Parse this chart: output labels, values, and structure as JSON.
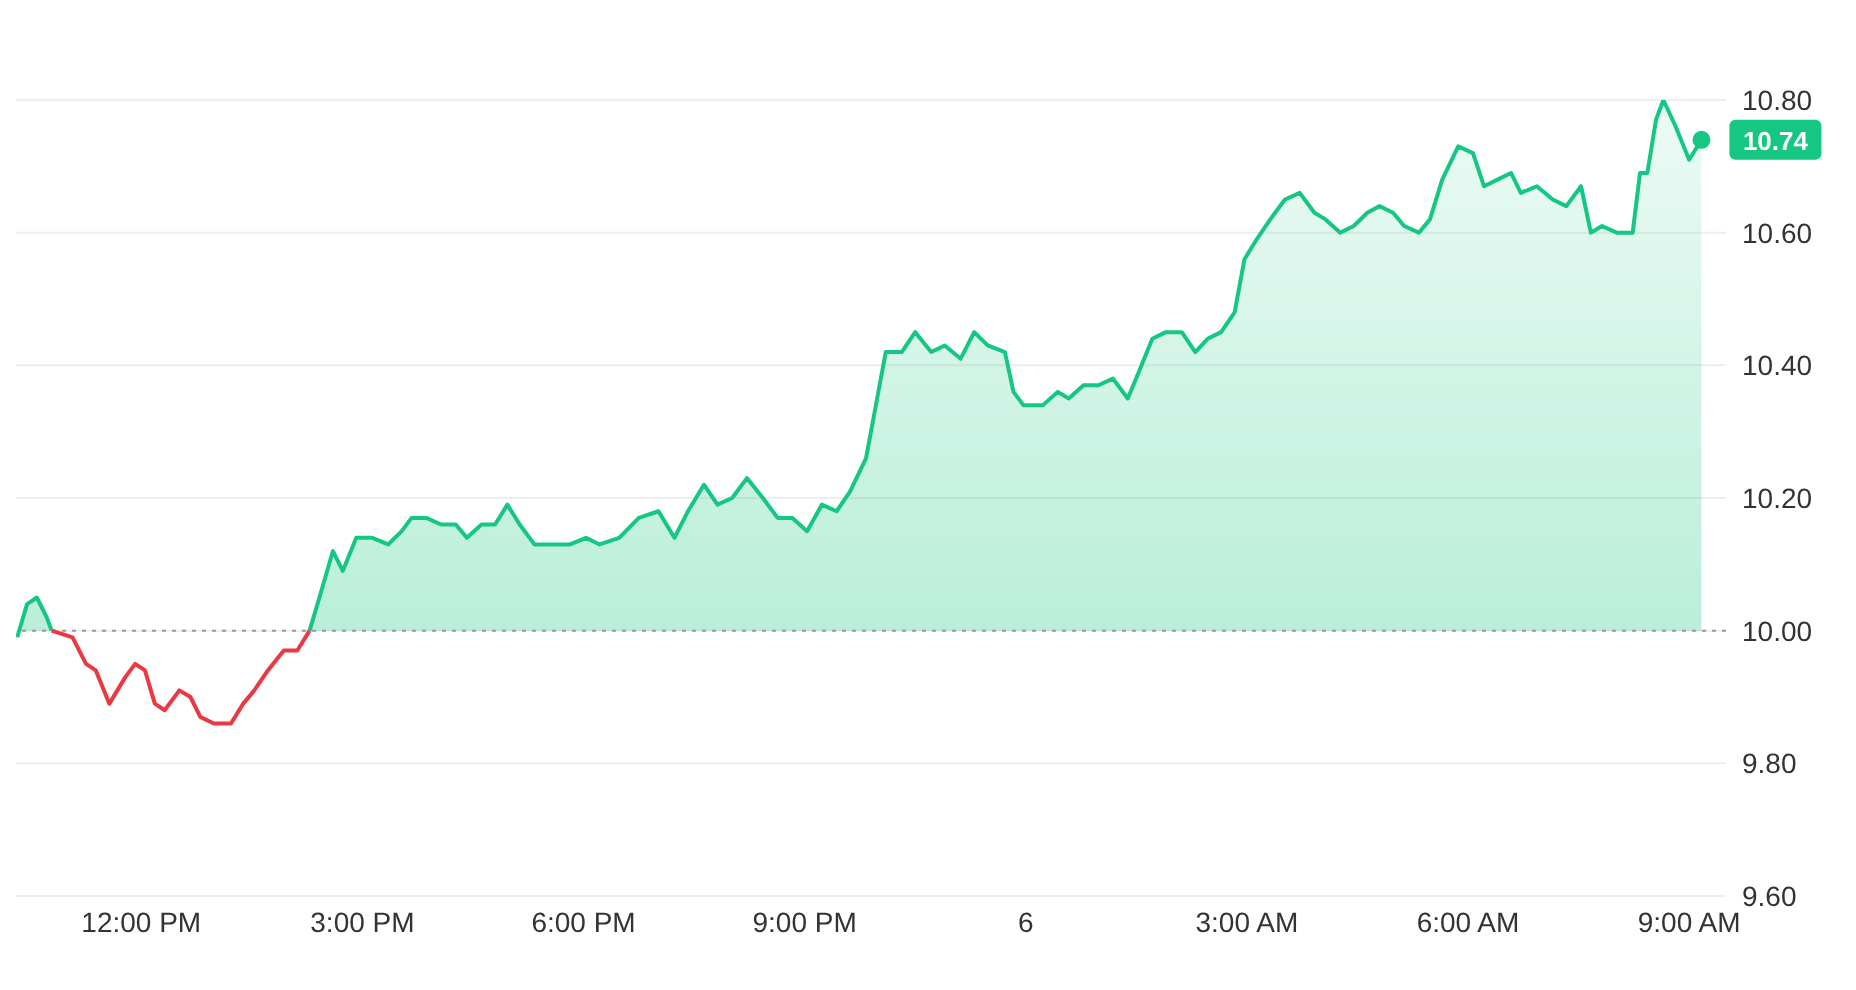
{
  "chart_data": {
    "type": "area",
    "series": [
      {
        "color": "#16c784",
        "x": [
          "--03-05T10:19",
          "--03-05T10:27",
          "--03-05T10:35",
          "--03-05T10:43",
          "--03-05T10:47",
          "--03-05T12:30",
          "--03-05T14:17",
          "--03-05T14:25",
          "--03-05T14:36",
          "--03-05T14:44",
          "--03-05T14:55",
          "--03-05T15:08",
          "--03-05T15:21",
          "--03-05T15:32",
          "--03-05T15:40",
          "--03-05T15:52",
          "--03-05T16:04",
          "--03-05T16:16",
          "--03-05T16:25",
          "--03-05T16:37",
          "--03-05T16:48",
          "--03-05T16:58",
          "--03-05T17:08",
          "--03-05T17:20",
          "--03-05T17:33",
          "--03-05T17:49",
          "--03-05T18:02",
          "--03-05T18:13",
          "--03-05T18:29",
          "--03-05T18:45",
          "--03-05T19:01",
          "--03-05T19:14",
          "--03-05T19:25",
          "--03-05T19:38",
          "--03-05T19:49",
          "--03-05T20:01",
          "--03-05T20:13",
          "--03-05T20:26",
          "--03-05T20:38",
          "--03-05T20:50",
          "--03-05T21:02",
          "--03-05T21:14",
          "--03-05T21:26",
          "--03-05T21:37",
          "--03-05T21:50",
          "--03-05T21:59",
          "--03-05T22:06",
          "--03-05T22:19",
          "--03-05T22:30",
          "--03-05T22:43",
          "--03-05T22:54",
          "--03-05T23:07",
          "--03-05T23:18",
          "--03-05T23:29",
          "--03-05T23:43",
          "--03-05T23:50",
          "--03-05T23:58",
          "--03-06T00:14",
          "--03-06T00:26",
          "--03-06T00:35",
          "--03-06T00:47",
          "--03-06T00:59",
          "--03-06T01:11",
          "--03-06T01:23",
          "--03-06T01:32",
          "--03-06T01:43",
          "--03-06T01:54",
          "--03-06T02:07",
          "--03-06T02:18",
          "--03-06T02:28",
          "--03-06T02:39",
          "--03-06T02:50",
          "--03-06T02:58",
          "--03-06T03:08",
          "--03-06T03:19",
          "--03-06T03:31",
          "--03-06T03:43",
          "--03-06T03:55",
          "--03-06T04:04",
          "--03-06T04:16",
          "--03-06T04:27",
          "--03-06T04:38",
          "--03-06T04:48",
          "--03-06T04:59",
          "--03-06T05:08",
          "--03-06T05:20",
          "--03-06T05:29",
          "--03-06T05:39",
          "--03-06T05:52",
          "--03-06T06:04",
          "--03-06T06:13",
          "--03-06T06:24",
          "--03-06T06:35",
          "--03-06T06:43",
          "--03-06T06:56",
          "--03-06T07:09",
          "--03-06T07:20",
          "--03-06T07:32",
          "--03-06T07:40",
          "--03-06T07:49",
          "--03-06T08:01",
          "--03-06T08:14",
          "--03-06T08:20",
          "--03-06T08:26",
          "--03-06T08:33",
          "--03-06T08:39",
          "--03-06T08:49",
          "--03-06T09:00",
          "--03-06T09:10"
        ],
        "values": [
          9.99,
          10.04,
          10.05,
          10.02,
          10.0,
          null,
          10.0,
          10.05,
          10.12,
          10.09,
          10.14,
          10.14,
          10.13,
          10.15,
          10.17,
          10.17,
          10.16,
          10.16,
          10.14,
          10.16,
          10.16,
          10.19,
          10.16,
          10.13,
          10.13,
          10.13,
          10.14,
          10.13,
          10.14,
          10.17,
          10.18,
          10.14,
          10.18,
          10.22,
          10.19,
          10.2,
          10.23,
          10.2,
          10.17,
          10.17,
          10.15,
          10.19,
          10.18,
          10.21,
          10.26,
          10.35,
          10.42,
          10.42,
          10.45,
          10.42,
          10.43,
          10.41,
          10.45,
          10.43,
          10.42,
          10.36,
          10.34,
          10.34,
          10.36,
          10.35,
          10.37,
          10.37,
          10.38,
          10.35,
          10.39,
          10.44,
          10.45,
          10.45,
          10.42,
          10.44,
          10.45,
          10.48,
          10.56,
          10.59,
          10.62,
          10.65,
          10.66,
          10.63,
          10.62,
          10.6,
          10.61,
          10.63,
          10.64,
          10.63,
          10.61,
          10.6,
          10.62,
          10.68,
          10.73,
          10.72,
          10.67,
          10.68,
          10.69,
          10.66,
          10.67,
          10.65,
          10.64,
          10.67,
          10.6,
          10.61,
          10.6,
          10.6,
          10.69,
          10.69,
          10.77,
          10.8,
          10.76,
          10.71,
          10.74
        ]
      },
      {
        "type": "line",
        "color": "#ea3943",
        "x": [
          "--03-05T10:47",
          "--03-05T11:04",
          "--03-05T11:15",
          "--03-05T11:23",
          "--03-05T11:34",
          "--03-05T11:47",
          "--03-05T11:55",
          "--03-05T12:03",
          "--03-05T12:11",
          "--03-05T12:19",
          "--03-05T12:31",
          "--03-05T12:40",
          "--03-05T12:48",
          "--03-05T12:59",
          "--03-05T13:13",
          "--03-05T13:23",
          "--03-05T13:32",
          "--03-05T13:43",
          "--03-05T13:56",
          "--03-05T14:07",
          "--03-05T14:17"
        ],
        "values": [
          10.0,
          9.99,
          9.95,
          9.94,
          9.89,
          9.93,
          9.95,
          9.94,
          9.89,
          9.88,
          9.91,
          9.9,
          9.87,
          9.86,
          9.86,
          9.89,
          9.91,
          9.94,
          9.97,
          9.97,
          10.0
        ]
      }
    ],
    "xlim": [
      "--03-05T10:18",
      "--03-06T09:30"
    ],
    "xticks": [
      {
        "value": "--03-05T12:00",
        "label": "12:00 PM"
      },
      {
        "value": "--03-05T15:00",
        "label": "3:00 PM"
      },
      {
        "value": "--03-05T18:00",
        "label": "6:00 PM"
      },
      {
        "value": "--03-05T21:00",
        "label": "9:00 PM"
      },
      {
        "value": "--03-06T00:00",
        "label": "6"
      },
      {
        "value": "--03-06T03:00",
        "label": "3:00 AM"
      },
      {
        "value": "--03-06T06:00",
        "label": "6:00 AM"
      },
      {
        "value": "--03-06T09:00",
        "label": "9:00 AM"
      }
    ],
    "ylim": [
      9.6,
      10.8
    ],
    "yticks": [
      {
        "value": 9.6,
        "label": "9.60"
      },
      {
        "value": 9.8,
        "label": "9.80"
      },
      {
        "value": 10.0,
        "label": "10.00"
      },
      {
        "value": 10.2,
        "label": "10.20"
      },
      {
        "value": 10.4,
        "label": "10.40"
      },
      {
        "value": 10.6,
        "label": "10.60"
      },
      {
        "value": 10.8,
        "label": "10.80"
      }
    ],
    "grid": "y",
    "ref_lines": [
      {
        "axis": "y",
        "value": 10.0,
        "color": "#999999",
        "line_style": "dotted"
      }
    ],
    "annotations": [
      {
        "text": "10.74",
        "x": "--03-06T09:10",
        "y": 10.74
      }
    ]
  }
}
